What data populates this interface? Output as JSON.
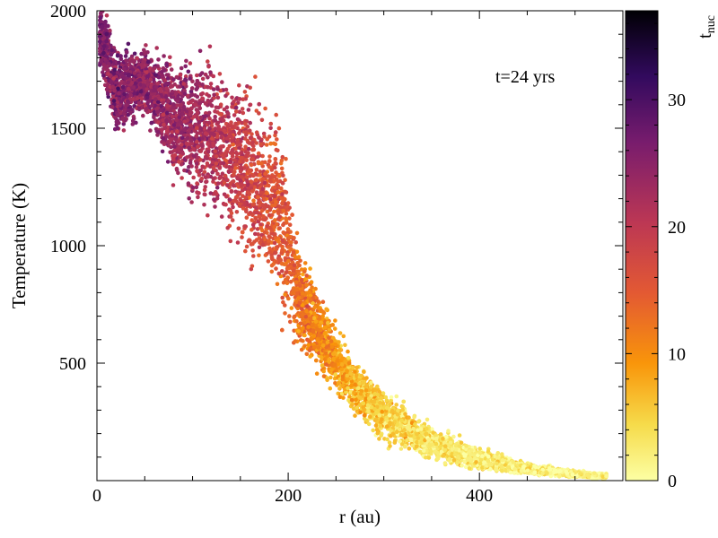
{
  "chart_data": {
    "type": "scatter",
    "title": "",
    "xlabel": "r (au)",
    "ylabel": "Temperature (K)",
    "xlim": [
      0,
      550
    ],
    "ylim": [
      0,
      2000
    ],
    "x_ticks": [
      0,
      200,
      400
    ],
    "y_ticks": [
      500,
      1000,
      1500,
      2000
    ],
    "x_minor_step": 50,
    "y_minor_step": 100,
    "annotation": "t=24 yrs",
    "colorbar": {
      "label": "t",
      "label_subscript": "nuc",
      "range": [
        0,
        37
      ],
      "ticks": [
        0,
        10,
        20,
        30
      ],
      "minor_step": 2,
      "colormap": "inferno_r"
    },
    "grid": false,
    "legend": "none",
    "profile": [
      {
        "r": 5,
        "t_center": 1900,
        "t_spread": 120
      },
      {
        "r": 20,
        "t_center": 1650,
        "t_spread": 170
      },
      {
        "r": 50,
        "t_center": 1700,
        "t_spread": 120
      },
      {
        "r": 80,
        "t_center": 1550,
        "t_spread": 220
      },
      {
        "r": 120,
        "t_center": 1450,
        "t_spread": 280
      },
      {
        "r": 160,
        "t_center": 1300,
        "t_spread": 300
      },
      {
        "r": 190,
        "t_center": 1150,
        "t_spread": 300
      },
      {
        "r": 210,
        "t_center": 800,
        "t_spread": 200
      },
      {
        "r": 230,
        "t_center": 650,
        "t_spread": 140
      },
      {
        "r": 260,
        "t_center": 450,
        "t_spread": 110
      },
      {
        "r": 300,
        "t_center": 280,
        "t_spread": 90
      },
      {
        "r": 350,
        "t_center": 160,
        "t_spread": 60
      },
      {
        "r": 400,
        "t_center": 90,
        "t_spread": 40
      },
      {
        "r": 450,
        "t_center": 50,
        "t_spread": 20
      },
      {
        "r": 520,
        "t_center": 20,
        "t_spread": 10
      }
    ],
    "tnuc_profile": [
      {
        "r": 0,
        "tnuc": 26
      },
      {
        "r": 100,
        "tnuc": 23
      },
      {
        "r": 180,
        "tnuc": 16
      },
      {
        "r": 230,
        "tnuc": 11
      },
      {
        "r": 280,
        "tnuc": 6
      },
      {
        "r": 350,
        "tnuc": 3
      },
      {
        "r": 550,
        "tnuc": 1
      }
    ]
  }
}
